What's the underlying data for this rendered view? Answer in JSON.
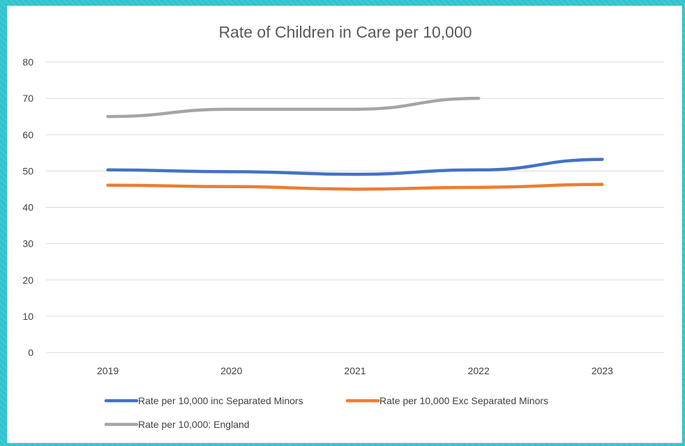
{
  "chart_data": {
    "type": "line",
    "title": "Rate of Children in Care per 10,000",
    "xlabel": "",
    "ylabel": "",
    "categories": [
      "2019",
      "2020",
      "2021",
      "2022",
      "2023"
    ],
    "ylim": [
      0,
      80
    ],
    "yticks": [
      "0",
      "10",
      "20",
      "30",
      "40",
      "50",
      "60",
      "70",
      "80"
    ],
    "grid": true,
    "legend_position": "bottom",
    "series": [
      {
        "name": "Rate per 10,000 inc Separated Minors",
        "color": "#4472c4",
        "values": [
          50.3,
          49.8,
          49.1,
          50.3,
          53.2
        ]
      },
      {
        "name": "Rate per 10,000 Exc Separated Minors",
        "color": "#ed7d31",
        "values": [
          46.1,
          45.7,
          45.0,
          45.5,
          46.3
        ]
      },
      {
        "name": "Rate per 10,000: England",
        "color": "#a5a5a5",
        "values": [
          65.0,
          67.0,
          67.0,
          70.0,
          null
        ]
      }
    ]
  }
}
